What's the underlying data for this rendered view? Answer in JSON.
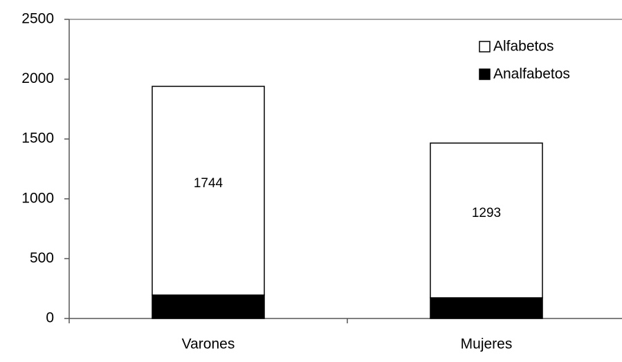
{
  "chart_data": {
    "type": "stacked-bar",
    "categories": [
      "Varones",
      "Mujeres"
    ],
    "series": [
      {
        "name": "Analfabetos",
        "color": "#000000",
        "values": [
          196,
          173
        ]
      },
      {
        "name": "Alfabetos",
        "color": "#ffffff",
        "values": [
          1744,
          1293
        ],
        "show_labels": true
      }
    ],
    "ylim": [
      0,
      2500
    ],
    "yticks": [
      0,
      500,
      1000,
      1500,
      2000,
      2500
    ],
    "legend": "top-right"
  }
}
